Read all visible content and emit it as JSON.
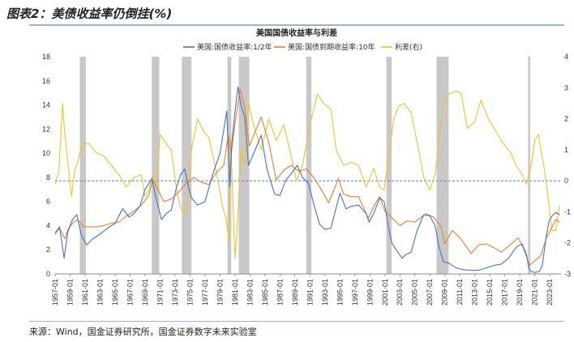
{
  "figure": {
    "title": "图表2：美债收益率仍倒挂(%)",
    "source": "来源：Wind，国金证券研究所，国金证券数字未来实验室"
  },
  "colors": {
    "short_yield": "#4472c4",
    "long_yield": "#ed7d31",
    "spread": "#f2c12e",
    "recession": "#c8c8c8",
    "zero_line": "#4d7fc4"
  },
  "chart_data": {
    "type": "line",
    "title": "美国国债收益率与利差",
    "x_ticks": [
      "1957-01",
      "1959-01",
      "1961-01",
      "1963-01",
      "1965-01",
      "1967-01",
      "1969-01",
      "1971-01",
      "1973-01",
      "1975-01",
      "1977-01",
      "1979-01",
      "1981-01",
      "1983-01",
      "1985-01",
      "1987-01",
      "1989-01",
      "1991-01",
      "1993-01",
      "1995-01",
      "1997-01",
      "1999-01",
      "2001-01",
      "2003-01",
      "2005-01",
      "2007-01",
      "2009-01",
      "2011-01",
      "2013-01",
      "2015-01",
      "2017-01",
      "2019-01",
      "2021-01",
      "2023-01"
    ],
    "xlim": [
      1957.0,
      2024.5
    ],
    "ylim_left": [
      0,
      18
    ],
    "y_ticks_left": [
      0,
      2,
      4,
      6,
      8,
      10,
      12,
      14,
      16,
      18
    ],
    "ylim_right": [
      -3,
      4
    ],
    "y_ticks_right": [
      -3,
      -2,
      -1,
      0,
      1,
      2,
      3,
      4
    ],
    "zero_spread_reference": 0,
    "legend_position": "top",
    "recession_periods": [
      [
        1960.3,
        1961.1
      ],
      [
        1969.9,
        1970.9
      ],
      [
        1973.9,
        1975.2
      ],
      [
        1980.0,
        1980.5
      ],
      [
        1981.5,
        1982.9
      ],
      [
        1990.5,
        1991.2
      ],
      [
        2001.2,
        2001.9
      ],
      [
        2007.9,
        2009.5
      ],
      [
        2020.1,
        2020.4
      ]
    ],
    "series": [
      {
        "name": "美国:国债收益率:1/2年",
        "axis": "left",
        "x": [
          1957.0,
          1957.6,
          1958.2,
          1958.7,
          1959.3,
          1959.9,
          1960.5,
          1961.2,
          1962.0,
          1963.0,
          1964.0,
          1965.0,
          1966.0,
          1966.9,
          1967.5,
          1968.3,
          1969.0,
          1969.9,
          1970.5,
          1971.2,
          1971.8,
          1972.5,
          1973.2,
          1973.8,
          1974.3,
          1974.8,
          1975.2,
          1976.0,
          1977.0,
          1978.0,
          1979.0,
          1979.9,
          1980.3,
          1980.6,
          1981.0,
          1981.4,
          1981.8,
          1982.3,
          1982.8,
          1983.5,
          1984.5,
          1985.3,
          1986.3,
          1987.0,
          1987.8,
          1988.5,
          1989.3,
          1990.0,
          1990.8,
          1991.5,
          1992.3,
          1993.0,
          1993.8,
          1994.5,
          1995.0,
          1995.8,
          1996.5,
          1997.5,
          1998.5,
          1998.9,
          1999.5,
          2000.3,
          2000.9,
          2001.5,
          2001.9,
          2002.5,
          2003.3,
          2003.8,
          2004.5,
          2005.3,
          2006.2,
          2007.0,
          2007.7,
          2008.2,
          2008.8,
          2009.5,
          2010.5,
          2011.5,
          2012.5,
          2013.5,
          2014.5,
          2015.5,
          2016.5,
          2017.5,
          2018.5,
          2019.3,
          2019.9,
          2020.2,
          2020.5,
          2021.0,
          2021.6,
          2022.0,
          2022.5,
          2022.9,
          2023.3,
          2023.8,
          2024.3
        ],
        "y": [
          3.4,
          3.9,
          1.3,
          3.5,
          4.5,
          4.9,
          3.2,
          2.4,
          2.9,
          3.3,
          3.8,
          4.2,
          5.4,
          4.7,
          5.0,
          5.6,
          7.0,
          7.9,
          6.2,
          4.5,
          5.0,
          5.3,
          7.2,
          8.3,
          8.7,
          7.2,
          6.3,
          5.7,
          6.0,
          8.2,
          10.0,
          13.5,
          7.2,
          11.0,
          13.5,
          15.5,
          14.0,
          13.0,
          9.0,
          10.0,
          11.5,
          8.6,
          6.6,
          6.5,
          7.8,
          8.3,
          9.0,
          8.0,
          7.5,
          5.8,
          4.1,
          3.7,
          3.8,
          5.5,
          6.7,
          5.4,
          5.6,
          5.7,
          5.0,
          4.3,
          5.0,
          6.3,
          6.0,
          3.8,
          2.6,
          2.0,
          1.3,
          1.6,
          1.8,
          3.6,
          4.9,
          4.8,
          4.0,
          2.3,
          1.0,
          0.9,
          0.5,
          0.35,
          0.3,
          0.3,
          0.5,
          0.7,
          0.8,
          1.3,
          2.2,
          2.5,
          1.6,
          0.5,
          0.2,
          0.12,
          0.2,
          0.7,
          3.0,
          4.4,
          4.8,
          5.1,
          4.9
        ]
      },
      {
        "name": "美国:国债到期收益率:10年",
        "axis": "left",
        "x": [
          1957.0,
          1957.6,
          1958.3,
          1958.8,
          1959.5,
          1960.0,
          1960.8,
          1961.5,
          1962.5,
          1963.5,
          1964.5,
          1965.5,
          1966.5,
          1967.5,
          1968.5,
          1969.5,
          1970.0,
          1970.8,
          1971.5,
          1972.5,
          1973.5,
          1974.5,
          1975.5,
          1976.5,
          1977.5,
          1978.5,
          1979.5,
          1980.1,
          1980.5,
          1981.0,
          1981.7,
          1982.3,
          1982.9,
          1983.5,
          1984.5,
          1985.5,
          1986.5,
          1987.5,
          1988.5,
          1989.5,
          1990.5,
          1991.5,
          1992.5,
          1993.5,
          1994.8,
          1995.5,
          1996.5,
          1997.5,
          1998.8,
          1999.5,
          2000.3,
          2001.0,
          2002.0,
          2003.0,
          2004.0,
          2005.0,
          2006.5,
          2007.5,
          2008.5,
          2009.0,
          2010.0,
          2011.0,
          2012.5,
          2013.5,
          2014.5,
          2015.5,
          2016.5,
          2017.5,
          2018.8,
          2019.5,
          2020.3,
          2021.0,
          2021.8,
          2022.5,
          2023.0,
          2023.8,
          2024.3
        ],
        "y": [
          3.3,
          3.8,
          2.9,
          3.8,
          4.3,
          4.5,
          3.9,
          3.9,
          3.9,
          4.0,
          4.2,
          4.3,
          4.8,
          5.2,
          5.7,
          6.5,
          7.8,
          6.9,
          6.0,
          6.2,
          6.8,
          7.5,
          8.0,
          7.6,
          7.4,
          8.4,
          9.0,
          11.5,
          10.0,
          12.5,
          15.3,
          13.8,
          10.6,
          11.5,
          13.0,
          10.9,
          7.8,
          8.6,
          9.0,
          8.5,
          8.7,
          8.0,
          7.0,
          5.9,
          7.9,
          6.6,
          6.4,
          6.4,
          4.6,
          5.6,
          6.4,
          5.2,
          4.6,
          4.0,
          4.4,
          4.3,
          5.0,
          4.7,
          3.9,
          2.5,
          3.6,
          3.0,
          1.7,
          2.4,
          2.5,
          2.2,
          1.8,
          2.3,
          3.0,
          2.1,
          0.7,
          1.1,
          1.5,
          2.9,
          3.5,
          4.5,
          4.3
        ]
      },
      {
        "name": "利差(右)",
        "axis": "right",
        "x": [
          1957.0,
          1957.5,
          1958.0,
          1958.3,
          1958.7,
          1959.2,
          1959.6,
          1960.0,
          1960.6,
          1961.5,
          1962.5,
          1963.5,
          1964.5,
          1965.5,
          1966.5,
          1967.5,
          1968.5,
          1969.0,
          1969.5,
          1970.0,
          1970.5,
          1971.0,
          1971.8,
          1972.5,
          1973.2,
          1973.8,
          1974.5,
          1975.2,
          1976.0,
          1976.8,
          1977.5,
          1978.5,
          1979.3,
          1979.8,
          1980.2,
          1980.4,
          1980.7,
          1981.0,
          1981.3,
          1981.8,
          1982.3,
          1982.8,
          1983.5,
          1984.5,
          1985.5,
          1986.5,
          1987.5,
          1988.5,
          1989.2,
          1990.0,
          1991.0,
          1992.0,
          1992.8,
          1993.8,
          1994.5,
          1995.5,
          1996.5,
          1997.5,
          1998.5,
          1999.5,
          2000.3,
          2000.9,
          2001.5,
          2002.2,
          2002.8,
          2003.5,
          2004.5,
          2005.5,
          2006.2,
          2007.0,
          2007.7,
          2008.3,
          2008.8,
          2009.5,
          2010.5,
          2011.2,
          2012.0,
          2013.0,
          2013.8,
          2014.8,
          2015.8,
          2016.8,
          2017.8,
          2018.5,
          2019.3,
          2019.9,
          2020.3,
          2020.6,
          2021.0,
          2021.5,
          2021.8,
          2022.2,
          2022.6,
          2022.9,
          2023.3,
          2023.8,
          2024.3
        ],
        "y": [
          -0.1,
          0.3,
          2.5,
          1.5,
          0.6,
          -0.5,
          0.3,
          0.6,
          1.2,
          1.2,
          0.9,
          0.8,
          0.5,
          0.2,
          -0.2,
          0.1,
          0.2,
          -0.5,
          -0.3,
          0.2,
          -0.2,
          1.5,
          1.2,
          1.0,
          -0.3,
          -0.9,
          -1.1,
          1.0,
          2.0,
          1.6,
          1.4,
          0.3,
          -0.8,
          -1.2,
          -2.0,
          1.5,
          -0.5,
          -2.5,
          -1.5,
          1.0,
          0.5,
          2.5,
          1.8,
          1.0,
          2.0,
          1.3,
          1.8,
          0.8,
          0.0,
          0.5,
          1.8,
          2.8,
          2.5,
          2.3,
          1.0,
          0.5,
          0.6,
          0.5,
          -0.2,
          0.4,
          -0.2,
          -0.3,
          0.8,
          2.0,
          2.4,
          2.5,
          2.2,
          1.0,
          0.1,
          -0.3,
          0.2,
          1.5,
          2.5,
          2.8,
          2.9,
          2.8,
          1.7,
          1.9,
          2.6,
          2.0,
          1.6,
          1.2,
          0.9,
          0.5,
          0.2,
          -0.1,
          0.3,
          0.6,
          1.3,
          1.5,
          1.0,
          0.5,
          -0.2,
          -0.8,
          -1.6,
          -1.6,
          -0.8
        ]
      }
    ]
  }
}
